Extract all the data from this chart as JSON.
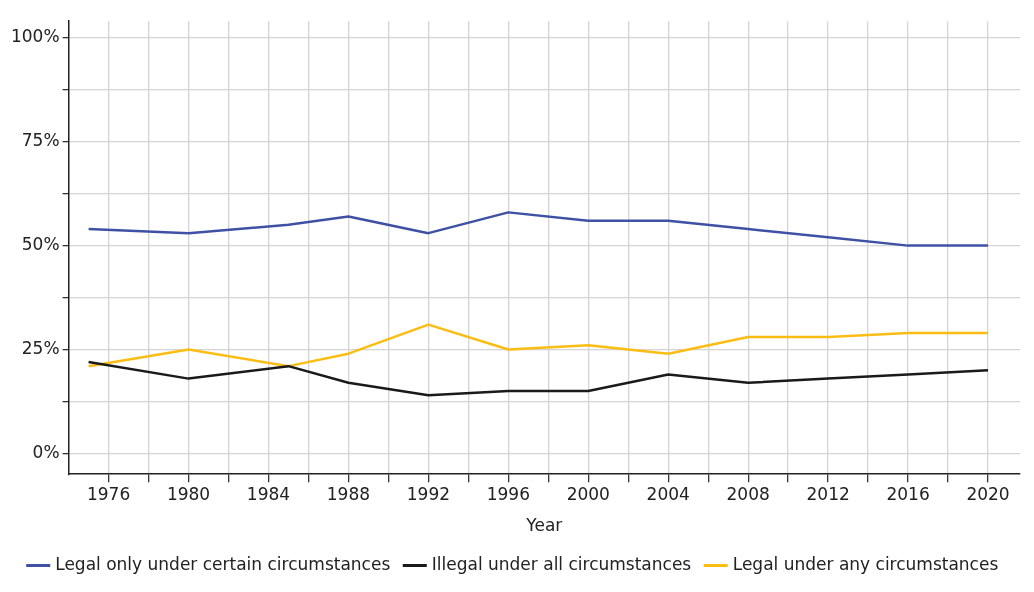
{
  "chart_data": {
    "type": "line",
    "xlabel": "Year",
    "x": [
      1975,
      1980,
      1985,
      1988,
      1992,
      1996,
      2000,
      2004,
      2008,
      2012,
      2016,
      2020
    ],
    "series": [
      {
        "name": "Legal only under certain circumstances",
        "color": "#3f51a5",
        "values": [
          54,
          53,
          55,
          57,
          53,
          58,
          56,
          56,
          54,
          52,
          50,
          50
        ]
      },
      {
        "name": "Illegal under all circumstances",
        "color": "#1a1a1a",
        "values": [
          22,
          18,
          21,
          17,
          14,
          15,
          15,
          19,
          17,
          18,
          19,
          20
        ]
      },
      {
        "name": "Legal under any circumstances",
        "color": "#fbbd14",
        "values": [
          21,
          25,
          21,
          24,
          31,
          25,
          26,
          24,
          28,
          28,
          29,
          29
        ]
      }
    ],
    "xlim": [
      1974,
      2021.6
    ],
    "xticks": [
      {
        "value": 1976,
        "label": "1976"
      },
      {
        "value": 1978,
        "label": null
      },
      {
        "value": 1980,
        "label": "1980"
      },
      {
        "value": 1982,
        "label": null
      },
      {
        "value": 1984,
        "label": "1984"
      },
      {
        "value": 1986,
        "label": null
      },
      {
        "value": 1988,
        "label": "1988"
      },
      {
        "value": 1990,
        "label": null
      },
      {
        "value": 1992,
        "label": "1992"
      },
      {
        "value": 1994,
        "label": null
      },
      {
        "value": 1996,
        "label": "1996"
      },
      {
        "value": 1998,
        "label": null
      },
      {
        "value": 2000,
        "label": "2000"
      },
      {
        "value": 2002,
        "label": null
      },
      {
        "value": 2004,
        "label": "2004"
      },
      {
        "value": 2006,
        "label": null
      },
      {
        "value": 2008,
        "label": "2008"
      },
      {
        "value": 2010,
        "label": null
      },
      {
        "value": 2012,
        "label": "2012"
      },
      {
        "value": 2014,
        "label": null
      },
      {
        "value": 2016,
        "label": "2016"
      },
      {
        "value": 2018,
        "label": null
      },
      {
        "value": 2020,
        "label": "2020"
      }
    ],
    "ylim": [
      -5,
      104
    ],
    "yticks": [
      {
        "value": 0,
        "label": "0%"
      },
      {
        "value": 12.5,
        "label": null
      },
      {
        "value": 25,
        "label": "25%"
      },
      {
        "value": 37.5,
        "label": null
      },
      {
        "value": 50,
        "label": "50%"
      },
      {
        "value": 62.5,
        "label": null
      },
      {
        "value": 75,
        "label": "75%"
      },
      {
        "value": 87.5,
        "label": null
      },
      {
        "value": 100,
        "label": "100%"
      }
    ],
    "grid": true,
    "legend": "bottom",
    "marker": "none",
    "line_style": "solid"
  }
}
